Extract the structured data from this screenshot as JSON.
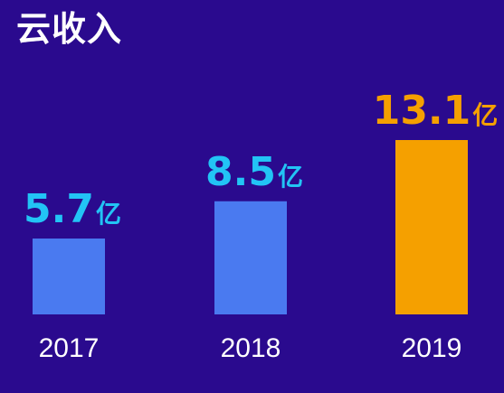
{
  "title": "云收入",
  "colors": {
    "background": "#2a0a8e",
    "bar_default": "#4a7af0",
    "bar_highlight": "#f5a000",
    "label_default": "#22c4f5",
    "label_highlight": "#f5a000",
    "tick": "#ffffff",
    "title": "#ffffff"
  },
  "chart_data": {
    "type": "bar",
    "title": "云收入",
    "xlabel": "",
    "ylabel": "",
    "unit": "亿",
    "categories": [
      "2017",
      "2018",
      "2019"
    ],
    "values": [
      5.7,
      8.5,
      13.1
    ],
    "value_labels": [
      "5.7",
      "8.5",
      "13.1"
    ],
    "highlight_index": 2,
    "ylim": [
      0,
      13.1
    ],
    "grid": false,
    "legend": "none"
  }
}
